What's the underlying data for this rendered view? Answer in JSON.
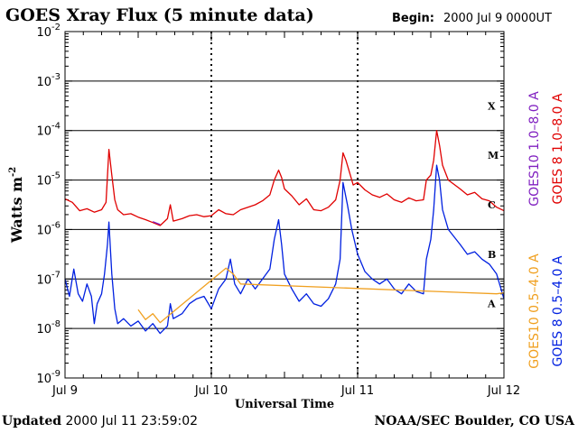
{
  "header": {
    "title": "GOES Xray Flux (5 minute data)",
    "begin_label": "Begin:",
    "begin_value": "2000 Jul 9 0000UT"
  },
  "footer": {
    "updated_label": "Updated",
    "updated_value": "2000 Jul 11 23:59:02",
    "credit": "NOAA/SEC Boulder, CO USA"
  },
  "chart_data": {
    "type": "line",
    "title": "GOES Xray Flux (5 minute data)",
    "xlabel": "Universal Time",
    "ylabel": "Watts m",
    "ylabel_exponent": "-2",
    "yscale": "log",
    "ylim_exp": [
      -9,
      -2
    ],
    "xlim_days": [
      0,
      3
    ],
    "x_ticks": [
      {
        "day": 0,
        "label": "Jul 9"
      },
      {
        "day": 1,
        "label": "Jul 10"
      },
      {
        "day": 2,
        "label": "Jul 11"
      },
      {
        "day": 3,
        "label": "Jul 12"
      }
    ],
    "y_ticks": [
      {
        "exp": -2,
        "base": "10",
        "power": "-2"
      },
      {
        "exp": -3,
        "base": "10",
        "power": "-3"
      },
      {
        "exp": -4,
        "base": "10",
        "power": "-4"
      },
      {
        "exp": -5,
        "base": "10",
        "power": "-5"
      },
      {
        "exp": -6,
        "base": "10",
        "power": "-6"
      },
      {
        "exp": -7,
        "base": "10",
        "power": "-7"
      },
      {
        "exp": -8,
        "base": "10",
        "power": "-8"
      },
      {
        "exp": -9,
        "base": "10",
        "power": "-9"
      }
    ],
    "grid_exps": [
      -3,
      -4,
      -5,
      -6,
      -7,
      -8
    ],
    "flare_classes": [
      {
        "label": "X",
        "exp": -3.5
      },
      {
        "label": "M",
        "exp": -4.5
      },
      {
        "label": "C",
        "exp": -5.5
      },
      {
        "label": "B",
        "exp": -6.5
      },
      {
        "label": "A",
        "exp": -7.5
      }
    ],
    "legend_right": [
      {
        "text": "GOES 8 1.0–8.0 A",
        "color": "#e00000"
      },
      {
        "text": "GOES 8 0.5–4.0 A",
        "color": "#0020e0"
      }
    ],
    "legend_left": [
      {
        "text": "GOES10 1.0–8.0 A",
        "color": "#8020c0"
      },
      {
        "text": "GOES10 0.5–4.0 A",
        "color": "#f0a020"
      }
    ],
    "series": [
      {
        "name": "GOES 8 1.0-8.0 A",
        "color": "#e00000",
        "points": [
          [
            0.0,
            -5.38
          ],
          [
            0.05,
            -5.45
          ],
          [
            0.1,
            -5.62
          ],
          [
            0.15,
            -5.58
          ],
          [
            0.2,
            -5.65
          ],
          [
            0.25,
            -5.6
          ],
          [
            0.28,
            -5.45
          ],
          [
            0.3,
            -4.38
          ],
          [
            0.32,
            -4.9
          ],
          [
            0.34,
            -5.4
          ],
          [
            0.36,
            -5.6
          ],
          [
            0.4,
            -5.7
          ],
          [
            0.45,
            -5.68
          ],
          [
            0.5,
            -5.75
          ],
          [
            0.55,
            -5.8
          ],
          [
            0.6,
            -5.86
          ],
          [
            0.65,
            -5.92
          ],
          [
            0.7,
            -5.78
          ],
          [
            0.72,
            -5.5
          ],
          [
            0.74,
            -5.83
          ],
          [
            0.8,
            -5.78
          ],
          [
            0.85,
            -5.72
          ],
          [
            0.9,
            -5.7
          ],
          [
            0.95,
            -5.74
          ],
          [
            1.0,
            -5.72
          ],
          [
            1.05,
            -5.6
          ],
          [
            1.1,
            -5.68
          ],
          [
            1.15,
            -5.7
          ],
          [
            1.2,
            -5.6
          ],
          [
            1.25,
            -5.55
          ],
          [
            1.3,
            -5.5
          ],
          [
            1.35,
            -5.42
          ],
          [
            1.4,
            -5.3
          ],
          [
            1.43,
            -5.0
          ],
          [
            1.46,
            -4.8
          ],
          [
            1.48,
            -4.95
          ],
          [
            1.5,
            -5.18
          ],
          [
            1.55,
            -5.32
          ],
          [
            1.6,
            -5.5
          ],
          [
            1.65,
            -5.38
          ],
          [
            1.7,
            -5.6
          ],
          [
            1.75,
            -5.62
          ],
          [
            1.8,
            -5.55
          ],
          [
            1.85,
            -5.4
          ],
          [
            1.88,
            -5.0
          ],
          [
            1.9,
            -4.45
          ],
          [
            1.92,
            -4.6
          ],
          [
            1.95,
            -4.9
          ],
          [
            1.97,
            -5.1
          ],
          [
            2.0,
            -5.05
          ],
          [
            2.05,
            -5.2
          ],
          [
            2.1,
            -5.3
          ],
          [
            2.15,
            -5.35
          ],
          [
            2.2,
            -5.28
          ],
          [
            2.25,
            -5.4
          ],
          [
            2.3,
            -5.45
          ],
          [
            2.35,
            -5.36
          ],
          [
            2.4,
            -5.42
          ],
          [
            2.45,
            -5.4
          ],
          [
            2.47,
            -5.0
          ],
          [
            2.5,
            -4.9
          ],
          [
            2.52,
            -4.6
          ],
          [
            2.54,
            -4.0
          ],
          [
            2.56,
            -4.3
          ],
          [
            2.58,
            -4.7
          ],
          [
            2.62,
            -5.0
          ],
          [
            2.7,
            -5.18
          ],
          [
            2.75,
            -5.3
          ],
          [
            2.8,
            -5.25
          ],
          [
            2.85,
            -5.38
          ],
          [
            2.9,
            -5.42
          ],
          [
            2.95,
            -5.55
          ],
          [
            3.0,
            -5.62
          ]
        ]
      },
      {
        "name": "GOES 8 0.5-4.0 A",
        "color": "#0020e0",
        "points": [
          [
            0.0,
            -7.0
          ],
          [
            0.03,
            -7.35
          ],
          [
            0.06,
            -6.8
          ],
          [
            0.09,
            -7.3
          ],
          [
            0.12,
            -7.45
          ],
          [
            0.15,
            -7.1
          ],
          [
            0.18,
            -7.35
          ],
          [
            0.2,
            -7.9
          ],
          [
            0.22,
            -7.5
          ],
          [
            0.25,
            -7.3
          ],
          [
            0.27,
            -6.9
          ],
          [
            0.29,
            -6.3
          ],
          [
            0.3,
            -5.85
          ],
          [
            0.32,
            -6.9
          ],
          [
            0.34,
            -7.6
          ],
          [
            0.36,
            -7.9
          ],
          [
            0.4,
            -7.8
          ],
          [
            0.45,
            -7.95
          ],
          [
            0.5,
            -7.85
          ],
          [
            0.55,
            -8.05
          ],
          [
            0.6,
            -7.9
          ],
          [
            0.65,
            -8.1
          ],
          [
            0.7,
            -7.95
          ],
          [
            0.72,
            -7.5
          ],
          [
            0.74,
            -7.8
          ],
          [
            0.8,
            -7.7
          ],
          [
            0.85,
            -7.5
          ],
          [
            0.9,
            -7.4
          ],
          [
            0.95,
            -7.35
          ],
          [
            1.0,
            -7.6
          ],
          [
            1.05,
            -7.2
          ],
          [
            1.1,
            -7.0
          ],
          [
            1.13,
            -6.6
          ],
          [
            1.16,
            -7.1
          ],
          [
            1.2,
            -7.3
          ],
          [
            1.25,
            -7.0
          ],
          [
            1.3,
            -7.2
          ],
          [
            1.35,
            -7.0
          ],
          [
            1.4,
            -6.8
          ],
          [
            1.43,
            -6.2
          ],
          [
            1.46,
            -5.8
          ],
          [
            1.48,
            -6.3
          ],
          [
            1.5,
            -6.9
          ],
          [
            1.55,
            -7.2
          ],
          [
            1.6,
            -7.45
          ],
          [
            1.65,
            -7.3
          ],
          [
            1.7,
            -7.5
          ],
          [
            1.75,
            -7.55
          ],
          [
            1.8,
            -7.4
          ],
          [
            1.85,
            -7.1
          ],
          [
            1.88,
            -6.6
          ],
          [
            1.9,
            -5.05
          ],
          [
            1.93,
            -5.5
          ],
          [
            1.96,
            -6.0
          ],
          [
            2.0,
            -6.5
          ],
          [
            2.05,
            -6.85
          ],
          [
            2.1,
            -7.0
          ],
          [
            2.15,
            -7.1
          ],
          [
            2.2,
            -7.0
          ],
          [
            2.25,
            -7.2
          ],
          [
            2.3,
            -7.3
          ],
          [
            2.35,
            -7.1
          ],
          [
            2.4,
            -7.25
          ],
          [
            2.45,
            -7.3
          ],
          [
            2.47,
            -6.6
          ],
          [
            2.5,
            -6.2
          ],
          [
            2.52,
            -5.6
          ],
          [
            2.54,
            -4.7
          ],
          [
            2.56,
            -5.0
          ],
          [
            2.58,
            -5.6
          ],
          [
            2.62,
            -6.0
          ],
          [
            2.7,
            -6.3
          ],
          [
            2.75,
            -6.5
          ],
          [
            2.8,
            -6.45
          ],
          [
            2.85,
            -6.6
          ],
          [
            2.9,
            -6.7
          ],
          [
            2.95,
            -6.9
          ],
          [
            3.0,
            -7.4
          ]
        ]
      },
      {
        "name": "GOES10 0.5-4.0 A",
        "color": "#f0a020",
        "points": [
          [
            0.5,
            -7.62
          ],
          [
            0.55,
            -7.82
          ],
          [
            0.6,
            -7.7
          ],
          [
            0.65,
            -7.88
          ],
          [
            1.1,
            -6.78
          ],
          [
            1.15,
            -6.9
          ],
          [
            1.2,
            -7.1
          ],
          [
            2.95,
            -7.3
          ],
          [
            3.0,
            -7.28
          ]
        ]
      },
      {
        "name": "GOES10 1.0-8.0 A",
        "color": "#8020c0",
        "points": [
          [
            0.6,
            -5.84
          ],
          [
            0.65,
            -5.9
          ]
        ]
      }
    ]
  }
}
